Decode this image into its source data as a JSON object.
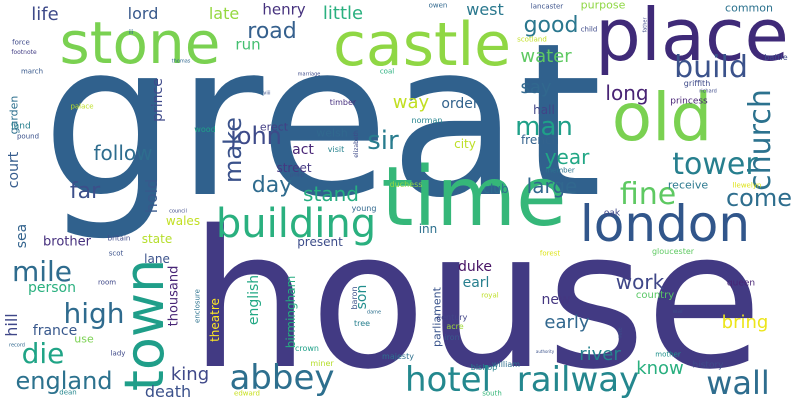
{
  "words": [
    {
      "text": "great",
      "color": "#30618d"
    },
    {
      "text": "house",
      "color": "#423a83"
    },
    {
      "text": "time",
      "color": "#35b779"
    },
    {
      "text": "place",
      "color": "#3f2a78"
    },
    {
      "text": "castle",
      "color": "#8fd744"
    },
    {
      "text": "stone",
      "color": "#7ad151"
    },
    {
      "text": "old",
      "color": "#7ad151"
    },
    {
      "text": "london",
      "color": "#31568b"
    },
    {
      "text": "building",
      "color": "#2ab07f"
    },
    {
      "text": "town",
      "color": "#1f9e89"
    },
    {
      "text": "hotel",
      "color": "#23888e"
    },
    {
      "text": "railway",
      "color": "#24878e"
    },
    {
      "text": "abbey",
      "color": "#2d6f8e"
    },
    {
      "text": "wall",
      "color": "#2e6d8e"
    },
    {
      "text": "church",
      "color": "#2c728e"
    },
    {
      "text": "tower",
      "color": "#277f8e"
    },
    {
      "text": "build",
      "color": "#3b528b"
    },
    {
      "text": "fine",
      "color": "#5ec962"
    },
    {
      "text": "come",
      "color": "#2e6e8e"
    },
    {
      "text": "mile",
      "color": "#2f6c8e"
    },
    {
      "text": "die",
      "color": "#20a486"
    },
    {
      "text": "high",
      "color": "#2f6b8e"
    },
    {
      "text": "england",
      "color": "#2c728e"
    },
    {
      "text": "king",
      "color": "#3f4889"
    },
    {
      "text": "man",
      "color": "#1fa088"
    },
    {
      "text": "sir",
      "color": "#287c8e"
    },
    {
      "text": "john",
      "color": "#3e4a89"
    },
    {
      "text": "make",
      "color": "#3b528b"
    },
    {
      "text": "day",
      "color": "#2f6b8e"
    },
    {
      "text": "road",
      "color": "#35608d"
    },
    {
      "text": "follow",
      "color": "#2e6d8e"
    },
    {
      "text": "far",
      "color": "#3c4f8a"
    },
    {
      "text": "stand",
      "color": "#26ad81"
    },
    {
      "text": "large",
      "color": "#31678e"
    },
    {
      "text": "year",
      "color": "#22a785"
    },
    {
      "text": "good",
      "color": "#2a778e"
    },
    {
      "text": "water",
      "color": "#5ec962"
    },
    {
      "text": "say",
      "color": "#31688e"
    },
    {
      "text": "long",
      "color": "#482374"
    },
    {
      "text": "way",
      "color": "#c2df23"
    },
    {
      "text": "know",
      "color": "#29af7f"
    },
    {
      "text": "work",
      "color": "#3f4788"
    },
    {
      "text": "early",
      "color": "#31678e"
    },
    {
      "text": "bring",
      "color": "#ece51b"
    },
    {
      "text": "river",
      "color": "#26828e"
    },
    {
      "text": "death",
      "color": "#3b518b"
    },
    {
      "text": "lord",
      "color": "#38598c"
    },
    {
      "text": "life",
      "color": "#3e4a89"
    },
    {
      "text": "late",
      "color": "#95d840"
    },
    {
      "text": "henry",
      "color": "#46327e"
    },
    {
      "text": "little",
      "color": "#2ab07f"
    },
    {
      "text": "west",
      "color": "#2a788e"
    },
    {
      "text": "purpose",
      "color": "#8fd744"
    },
    {
      "text": "common",
      "color": "#2c728e"
    },
    {
      "text": "run",
      "color": "#44bf70"
    },
    {
      "text": "order",
      "color": "#33638d"
    },
    {
      "text": "hall",
      "color": "#414487"
    },
    {
      "text": "french",
      "color": "#33628d"
    },
    {
      "text": "city",
      "color": "#bddf26"
    },
    {
      "text": "act",
      "color": "#482576"
    },
    {
      "text": "street",
      "color": "#453882"
    },
    {
      "text": "welsh",
      "color": "#31688e"
    },
    {
      "text": "erect",
      "color": "#433e85"
    },
    {
      "text": "prince",
      "color": "#3e4989"
    },
    {
      "text": "hold",
      "color": "#38598c"
    },
    {
      "text": "court",
      "color": "#365c8d"
    },
    {
      "text": "garden",
      "color": "#2d708e"
    },
    {
      "text": "sea",
      "color": "#33638d"
    },
    {
      "text": "brother",
      "color": "#46307e"
    },
    {
      "text": "wales",
      "color": "#c2df23"
    },
    {
      "text": "state",
      "color": "#b5de2b"
    },
    {
      "text": "lane",
      "color": "#3b528b"
    },
    {
      "text": "person",
      "color": "#2ab07f"
    },
    {
      "text": "hill",
      "color": "#3f4788"
    },
    {
      "text": "france",
      "color": "#38588c"
    },
    {
      "text": "use",
      "color": "#7ad151"
    },
    {
      "text": "thousand",
      "color": "#482576"
    },
    {
      "text": "theatre",
      "color": "#fde725"
    },
    {
      "text": "english",
      "color": "#22a884"
    },
    {
      "text": "birmingham",
      "color": "#26ad81"
    },
    {
      "text": "present",
      "color": "#3d4d8a"
    },
    {
      "text": "inn",
      "color": "#2d708e"
    },
    {
      "text": "duke",
      "color": "#471365"
    },
    {
      "text": "earl",
      "color": "#277f8e"
    },
    {
      "text": "son",
      "color": "#218e8d"
    },
    {
      "text": "club",
      "color": "#2d708e"
    },
    {
      "text": "parliament",
      "color": "#3a548c"
    },
    {
      "text": "new",
      "color": "#453781"
    },
    {
      "text": "receive",
      "color": "#2a788e"
    },
    {
      "text": "country",
      "color": "#58c765"
    },
    {
      "text": "gloucester",
      "color": "#5ec962"
    },
    {
      "text": "queen",
      "color": "#482475"
    },
    {
      "text": "history",
      "color": "#3e4a89"
    },
    {
      "text": "mother",
      "color": "#20928c"
    },
    {
      "text": "william",
      "color": "#2e6e8e"
    },
    {
      "text": "bishop",
      "color": "#25848e"
    },
    {
      "text": "majesty",
      "color": "#2d708e"
    },
    {
      "text": "iron",
      "color": "#38598c"
    },
    {
      "text": "century",
      "color": "#414487"
    },
    {
      "text": "acre",
      "color": "#a0da39"
    },
    {
      "text": "baron",
      "color": "#3b528b"
    },
    {
      "text": "tree",
      "color": "#277f8e"
    },
    {
      "text": "crown",
      "color": "#1fa088"
    },
    {
      "text": "miner",
      "color": "#b5de2b"
    },
    {
      "text": "lady",
      "color": "#3e4989"
    },
    {
      "text": "dean",
      "color": "#24868e"
    },
    {
      "text": "edward",
      "color": "#c8e020"
    },
    {
      "text": "south",
      "color": "#35b779"
    },
    {
      "text": "dame",
      "color": "#2d708e"
    },
    {
      "text": "record",
      "color": "#31688e"
    },
    {
      "text": "room",
      "color": "#3f4889"
    },
    {
      "text": "britain",
      "color": "#3e4a89"
    },
    {
      "text": "scot",
      "color": "#3b528b"
    },
    {
      "text": "enclosure",
      "color": "#2c728e"
    },
    {
      "text": "royal",
      "color": "#bddf26"
    },
    {
      "text": "forest",
      "color": "#dde318"
    },
    {
      "text": "timber",
      "color": "#46307e"
    },
    {
      "text": "visit",
      "color": "#26828e"
    },
    {
      "text": "norman",
      "color": "#25848e"
    },
    {
      "text": "elizabeth",
      "color": "#3e4a89"
    },
    {
      "text": "member",
      "color": "#2c728e"
    },
    {
      "text": "duchess",
      "color": "#8fd744"
    },
    {
      "text": "young",
      "color": "#31688e"
    },
    {
      "text": "philip",
      "color": "#3b528b"
    },
    {
      "text": "oak",
      "color": "#3f4788"
    },
    {
      "text": "palace",
      "color": "#bddf26"
    },
    {
      "text": "pound",
      "color": "#3b528b"
    },
    {
      "text": "land",
      "color": "#277f8e"
    },
    {
      "text": "march",
      "color": "#38598c"
    },
    {
      "text": "force",
      "color": "#3e4989"
    },
    {
      "text": "footnote",
      "color": "#433e85"
    },
    {
      "text": "iii",
      "color": "#31688e"
    },
    {
      "text": "owen",
      "color": "#31688e"
    },
    {
      "text": "lancaster",
      "color": "#3b528b"
    },
    {
      "text": "scotland",
      "color": "#c2df23"
    },
    {
      "text": "child",
      "color": "#3e4a89"
    },
    {
      "text": "battle",
      "color": "#3e4a89"
    },
    {
      "text": "griffith",
      "color": "#3e4a89"
    },
    {
      "text": "princess",
      "color": "#482475"
    },
    {
      "text": "llewelyn",
      "color": "#dde318"
    },
    {
      "text": "wood",
      "color": "#1fa088"
    },
    {
      "text": "coal",
      "color": "#2ab07f"
    },
    {
      "text": "marriage",
      "color": "#3e4a89"
    },
    {
      "text": "viii",
      "color": "#3b528b"
    },
    {
      "text": "thomas",
      "color": "#31688e"
    },
    {
      "text": "richard",
      "color": "#3e4a89"
    },
    {
      "text": "father",
      "color": "#3e4a89"
    },
    {
      "text": "council",
      "color": "#3e4a89"
    },
    {
      "text": "authority",
      "color": "#3b528b"
    },
    {
      "text": "war",
      "color": "#3e4a89"
    },
    {
      "text": "note",
      "color": "#3b528b"
    }
  ]
}
